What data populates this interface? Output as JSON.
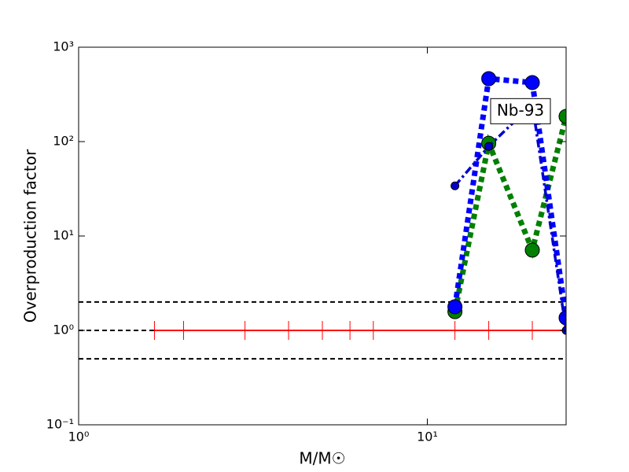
{
  "chart_data": {
    "type": "line",
    "xlabel": "M/M☉",
    "ylabel": "Overproduction factor",
    "xscale": "log",
    "yscale": "log",
    "xlim": [
      1,
      25
    ],
    "ylim": [
      0.1,
      1000
    ],
    "xticks": [
      {
        "value": 1,
        "label": "10⁰"
      },
      {
        "value": 10,
        "label": "10¹"
      }
    ],
    "yticks": [
      {
        "value": 0.1,
        "label": "10⁻¹"
      },
      {
        "value": 1,
        "label": "10⁰"
      },
      {
        "value": 10,
        "label": "10¹"
      },
      {
        "value": 100,
        "label": "10²"
      },
      {
        "value": 1000,
        "label": "10³"
      }
    ],
    "hlines": [
      2,
      1,
      0.5
    ],
    "hline_color": "#000000",
    "series": [
      {
        "color": "#ff0000",
        "linestyle": "solid",
        "marker": "|",
        "x": [
          1.65,
          2,
          3,
          4,
          5,
          6,
          7,
          12,
          15,
          20,
          25
        ],
        "values": [
          1,
          1,
          1,
          1,
          1,
          1,
          1,
          1,
          1,
          1,
          1
        ]
      },
      {
        "color": "#008000",
        "linestyle": "dotted",
        "marker": "o",
        "x": [
          12,
          15,
          20,
          25
        ],
        "values": [
          1.58,
          96,
          7.1,
          185
        ]
      },
      {
        "color": "#0000ff",
        "linestyle": "dotted",
        "marker": "o",
        "x": [
          12,
          15,
          20,
          25
        ],
        "values": [
          1.78,
          464,
          422,
          1.36
        ]
      },
      {
        "color": "#0000cd",
        "linestyle": "dashdot",
        "marker": "o-small",
        "x": [
          12,
          15,
          20,
          25
        ],
        "values": [
          34,
          89,
          250,
          1
        ]
      }
    ],
    "annotations": [
      {
        "text": "Nb-93",
        "x": 18.5,
        "y": 210
      }
    ]
  }
}
